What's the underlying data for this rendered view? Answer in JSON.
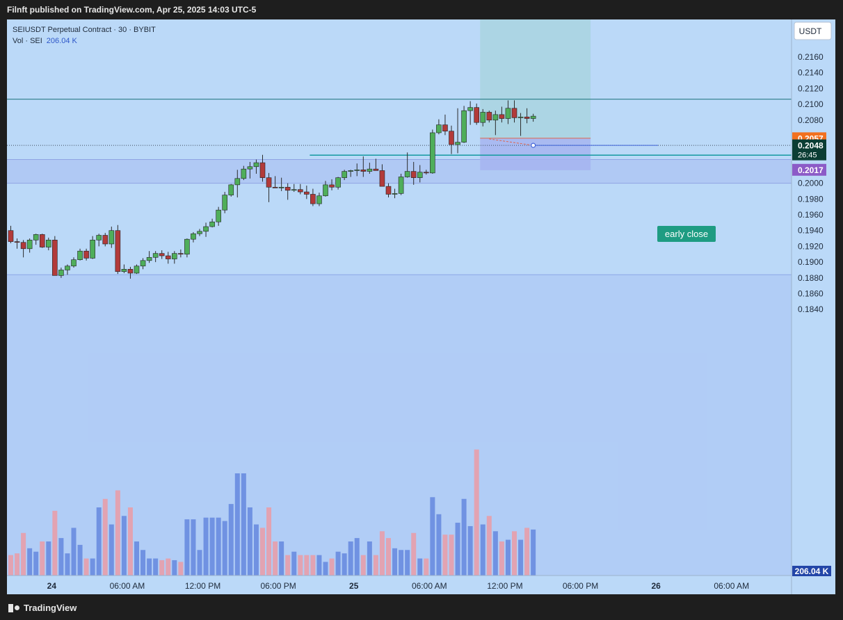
{
  "header": {
    "published_text": "Filnft published on TradingView.com, Apr 25, 2025 14:03 UTC-5"
  },
  "legend": {
    "symbol_line": "SEIUSDT Perpetual Contract · 30 · BYBIT",
    "vol_label": "Vol · SEI",
    "vol_value": "206.04 K"
  },
  "footer": {
    "brand": "TradingView"
  },
  "chart_data": {
    "type": "candlestick",
    "currency_button": "USDT",
    "y_ticks": [
      "0.2160",
      "0.2140",
      "0.2120",
      "0.2100",
      "0.2080",
      "0.2060",
      "0.2040",
      "0.2020",
      "0.2000",
      "0.1980",
      "0.1960",
      "0.1940",
      "0.1920",
      "0.1900",
      "0.1880",
      "0.1860",
      "0.1840"
    ],
    "ylim": [
      0.1832,
      0.2188
    ],
    "x_ticks": [
      {
        "i": 6.5,
        "label": "24"
      },
      {
        "i": 18.5,
        "label": "06:00 AM"
      },
      {
        "i": 30.5,
        "label": "12:00 PM"
      },
      {
        "i": 42.5,
        "label": "06:00 PM"
      },
      {
        "i": 54.5,
        "label": "25"
      },
      {
        "i": 66.5,
        "label": "06:00 AM"
      },
      {
        "i": 78.5,
        "label": "12:00 PM"
      },
      {
        "i": 90.5,
        "label": "06:00 PM"
      },
      {
        "i": 102.5,
        "label": "26"
      },
      {
        "i": 114.5,
        "label": "06:00 AM"
      }
    ],
    "price_labels": [
      {
        "value": 0.2057,
        "text": "0.2057",
        "color": "#f2701f"
      },
      {
        "value": 0.2048,
        "text": "0.2048",
        "sub": "26:45",
        "color": "#0b3d34"
      },
      {
        "value": 0.2017,
        "text": "0.2017",
        "color": "#8c5bc7"
      }
    ],
    "volume_label": "206.04 K",
    "annotations": {
      "early_close": "early close"
    },
    "levels": {
      "resistance": 0.21065,
      "support_line": 0.20355,
      "zone_top": 0.203,
      "zone_bottom": 0.2,
      "lower_zone_top": 0.1884,
      "entry": 0.2057,
      "current": 0.2048
    },
    "position": {
      "start_i": 75,
      "end_i": 92,
      "entry": 0.2057,
      "target": 0.21935,
      "stop": 0.20165
    },
    "candles": [
      [
        0.194,
        0.1946,
        0.1924,
        0.1926,
        12
      ],
      [
        0.1926,
        0.193,
        0.1917,
        0.1925,
        13
      ],
      [
        0.1925,
        0.1928,
        0.1906,
        0.1917,
        25
      ],
      [
        0.1917,
        0.193,
        0.1912,
        0.1928,
        16
      ],
      [
        0.1928,
        0.1936,
        0.1922,
        0.1935,
        14
      ],
      [
        0.1935,
        0.1936,
        0.1918,
        0.1919,
        20
      ],
      [
        0.1919,
        0.1931,
        0.1915,
        0.1928,
        20
      ],
      [
        0.1928,
        0.1933,
        0.1883,
        0.1883,
        38
      ],
      [
        0.1883,
        0.1893,
        0.188,
        0.189,
        22
      ],
      [
        0.189,
        0.1897,
        0.1884,
        0.1895,
        13
      ],
      [
        0.1895,
        0.1906,
        0.1893,
        0.1903,
        28
      ],
      [
        0.1903,
        0.1917,
        0.1902,
        0.1914,
        18
      ],
      [
        0.1914,
        0.1917,
        0.1902,
        0.1905,
        10
      ],
      [
        0.1905,
        0.1933,
        0.1904,
        0.1928,
        10
      ],
      [
        0.1928,
        0.1936,
        0.192,
        0.1934,
        40
      ],
      [
        0.1934,
        0.1937,
        0.192,
        0.1923,
        45
      ],
      [
        0.1923,
        0.1945,
        0.1918,
        0.194,
        30
      ],
      [
        0.194,
        0.1947,
        0.1885,
        0.1888,
        50
      ],
      [
        0.1888,
        0.1897,
        0.1886,
        0.1891,
        35
      ],
      [
        0.1891,
        0.1894,
        0.1879,
        0.1886,
        40
      ],
      [
        0.1886,
        0.1897,
        0.1885,
        0.1895,
        20
      ],
      [
        0.1895,
        0.1905,
        0.1891,
        0.1902,
        15
      ],
      [
        0.1902,
        0.1914,
        0.1899,
        0.1906,
        10
      ],
      [
        0.1906,
        0.1914,
        0.19,
        0.1911,
        10
      ],
      [
        0.1911,
        0.1915,
        0.1904,
        0.1908,
        9
      ],
      [
        0.1908,
        0.1913,
        0.1898,
        0.1904,
        10
      ],
      [
        0.1904,
        0.1914,
        0.1898,
        0.1911,
        9
      ],
      [
        0.1911,
        0.1916,
        0.1906,
        0.191,
        8
      ],
      [
        0.191,
        0.193,
        0.1906,
        0.1929,
        33
      ],
      [
        0.1929,
        0.1938,
        0.1925,
        0.1936,
        33
      ],
      [
        0.1936,
        0.1942,
        0.1933,
        0.1939,
        15
      ],
      [
        0.1939,
        0.195,
        0.1932,
        0.1945,
        34
      ],
      [
        0.1945,
        0.1955,
        0.1944,
        0.1951,
        34
      ],
      [
        0.1951,
        0.197,
        0.1946,
        0.1966,
        34
      ],
      [
        0.1966,
        0.1989,
        0.1962,
        0.1985,
        32
      ],
      [
        0.1985,
        0.1999,
        0.1983,
        0.1998,
        42
      ],
      [
        0.1998,
        0.2017,
        0.1982,
        0.2006,
        60
      ],
      [
        0.2006,
        0.2022,
        0.2004,
        0.2018,
        60
      ],
      [
        0.2018,
        0.2027,
        0.2006,
        0.2021,
        40
      ],
      [
        0.2021,
        0.203,
        0.2012,
        0.2026,
        30
      ],
      [
        0.2026,
        0.2036,
        0.2002,
        0.2007,
        28
      ],
      [
        0.2007,
        0.2013,
        0.1976,
        0.1995,
        40
      ],
      [
        0.1995,
        0.2009,
        0.1994,
        0.1994,
        20
      ],
      [
        0.1994,
        0.2007,
        0.199,
        0.1995,
        20
      ],
      [
        0.1995,
        0.2,
        0.1979,
        0.1991,
        12
      ],
      [
        0.1991,
        0.1999,
        0.1989,
        0.1992,
        14
      ],
      [
        0.1992,
        0.1999,
        0.1986,
        0.1989,
        12
      ],
      [
        0.1989,
        0.1997,
        0.198,
        0.1986,
        12
      ],
      [
        0.1986,
        0.1993,
        0.1971,
        0.1974,
        12
      ],
      [
        0.1974,
        0.1988,
        0.1971,
        0.1984,
        12
      ],
      [
        0.1984,
        0.2003,
        0.1983,
        0.1998,
        8
      ],
      [
        0.1998,
        0.2005,
        0.1991,
        0.1995,
        10
      ],
      [
        0.1995,
        0.2008,
        0.1992,
        0.2007,
        14
      ],
      [
        0.2007,
        0.2017,
        0.2004,
        0.2015,
        13
      ],
      [
        0.2015,
        0.2017,
        0.2008,
        0.2016,
        20
      ],
      [
        0.2016,
        0.2025,
        0.2009,
        0.2017,
        22
      ],
      [
        0.2017,
        0.2034,
        0.2008,
        0.2015,
        12
      ],
      [
        0.2015,
        0.2026,
        0.2012,
        0.2018,
        20
      ],
      [
        0.2018,
        0.2031,
        0.2016,
        0.2016,
        12
      ],
      [
        0.2016,
        0.2024,
        0.1997,
        0.1996,
        26
      ],
      [
        0.1996,
        0.2,
        0.1982,
        0.1986,
        22
      ],
      [
        0.1986,
        0.1993,
        0.1981,
        0.1987,
        16
      ],
      [
        0.1987,
        0.2012,
        0.1985,
        0.2008,
        15
      ],
      [
        0.2008,
        0.2039,
        0.2007,
        0.2015,
        15
      ],
      [
        0.2015,
        0.2027,
        0.1998,
        0.2007,
        25
      ],
      [
        0.2007,
        0.2023,
        0.2001,
        0.2014,
        10
      ],
      [
        0.2014,
        0.2017,
        0.2011,
        0.2013,
        10
      ],
      [
        0.2013,
        0.2068,
        0.2012,
        0.2064,
        46
      ],
      [
        0.2064,
        0.2081,
        0.2062,
        0.2074,
        36
      ],
      [
        0.2074,
        0.2087,
        0.2061,
        0.2066,
        24
      ],
      [
        0.2066,
        0.2073,
        0.2037,
        0.2049,
        24
      ],
      [
        0.2049,
        0.2095,
        0.2038,
        0.2052,
        31
      ],
      [
        0.2052,
        0.2098,
        0.2051,
        0.2092,
        45
      ],
      [
        0.2092,
        0.2104,
        0.2074,
        0.2096,
        29
      ],
      [
        0.2096,
        0.2101,
        0.2074,
        0.2077,
        74
      ],
      [
        0.2077,
        0.2094,
        0.2072,
        0.209,
        30
      ],
      [
        0.209,
        0.2092,
        0.2077,
        0.208,
        35
      ],
      [
        0.208,
        0.2092,
        0.2061,
        0.2087,
        26
      ],
      [
        0.2087,
        0.2097,
        0.2077,
        0.2082,
        20
      ],
      [
        0.2082,
        0.2105,
        0.2075,
        0.2095,
        21
      ],
      [
        0.2095,
        0.2105,
        0.2077,
        0.2083,
        26
      ],
      [
        0.2083,
        0.2089,
        0.206,
        0.2084,
        21
      ],
      [
        0.2084,
        0.2095,
        0.2076,
        0.2082,
        28
      ],
      [
        0.2082,
        0.2088,
        0.2078,
        0.2085,
        27
      ]
    ]
  }
}
